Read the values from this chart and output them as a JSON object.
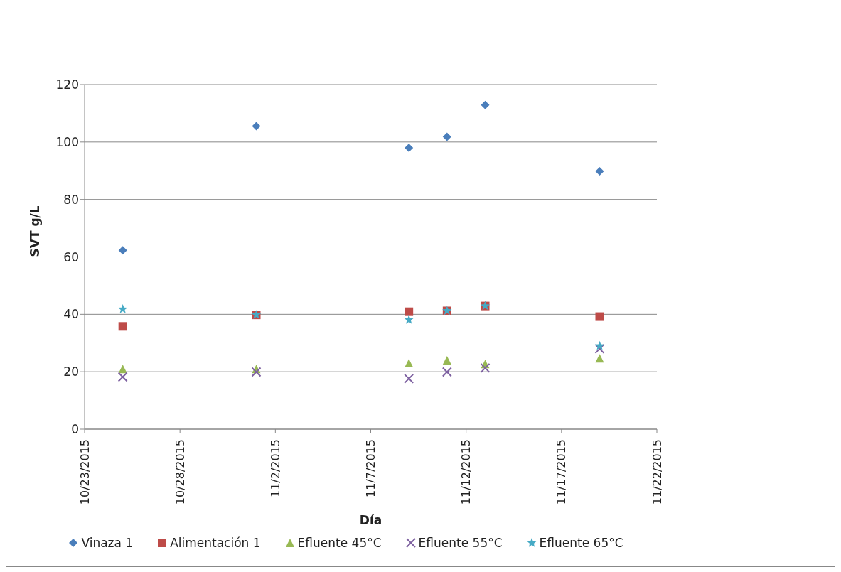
{
  "chart_data": {
    "type": "scatter",
    "xlabel": "Día",
    "ylabel": "SVT g/L",
    "x": [
      "2015-10-25",
      "2015-11-01",
      "2015-11-09",
      "2015-11-11",
      "2015-11-13",
      "2015-11-19"
    ],
    "series": [
      {
        "name": "Vinaza 1",
        "color": "#4a7ebb",
        "marker": "diamond",
        "values": [
          62.3,
          105.5,
          98,
          101.8,
          112.9,
          89.8
        ]
      },
      {
        "name": "Alimentación 1",
        "color": "#be4b48",
        "marker": "square",
        "values": [
          35.8,
          39.8,
          40.9,
          41.2,
          42.9,
          39.2
        ]
      },
      {
        "name": "Efluente 45°C",
        "color": "#98b954",
        "marker": "triangle",
        "values": [
          21,
          21,
          23,
          24,
          22.7,
          24.7
        ]
      },
      {
        "name": "Efluente 55°C",
        "color": "#7d60a0",
        "marker": "cross",
        "values": [
          18.2,
          19.9,
          17.6,
          19.9,
          21.3,
          28
        ]
      },
      {
        "name": "Efluente 65°C",
        "color": "#46aac5",
        "marker": "star",
        "values": [
          41.8,
          39.8,
          38.1,
          41.2,
          42.9,
          29
        ]
      }
    ],
    "xlim": [
      "2015-10-23",
      "2015-11-22"
    ],
    "xticks": [
      {
        "value": "2015-10-23",
        "label": "10/23/2015"
      },
      {
        "value": "2015-10-28",
        "label": "10/28/2015"
      },
      {
        "value": "2015-11-02",
        "label": "11/2/2015"
      },
      {
        "value": "2015-11-07",
        "label": "11/7/2015"
      },
      {
        "value": "2015-11-12",
        "label": "11/12/2015"
      },
      {
        "value": "2015-11-17",
        "label": "11/17/2015"
      },
      {
        "value": "2015-11-22",
        "label": "11/22/2015"
      }
    ],
    "ylim": [
      0,
      120
    ],
    "yticks": [
      0,
      20,
      40,
      60,
      80,
      100,
      120
    ],
    "grid": "y",
    "legend": "bottom"
  }
}
